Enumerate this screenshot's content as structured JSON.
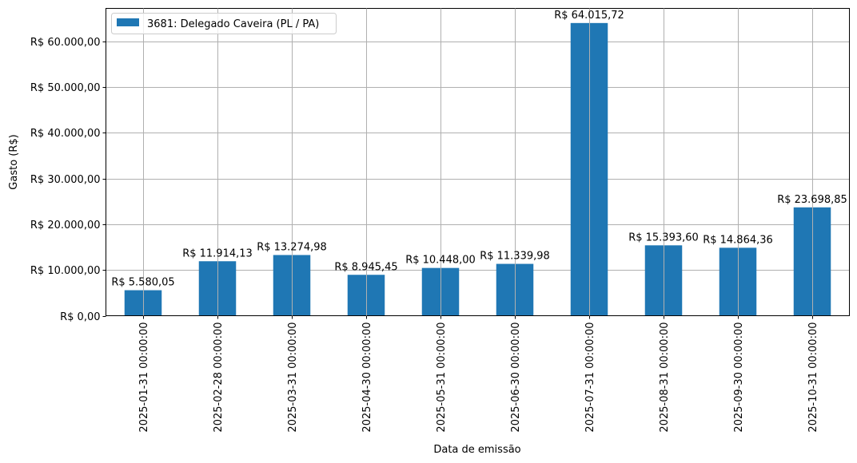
{
  "chart_data": {
    "type": "bar",
    "title": "",
    "xlabel": "Data de emissão",
    "ylabel": "Gasto (R$)",
    "ylim": [
      0,
      67216.51
    ],
    "grid": true,
    "legend_position": "upper left",
    "categories": [
      "2025-01-31 00:00:00",
      "2025-02-28 00:00:00",
      "2025-03-31 00:00:00",
      "2025-04-30 00:00:00",
      "2025-05-31 00:00:00",
      "2025-06-30 00:00:00",
      "2025-07-31 00:00:00",
      "2025-08-31 00:00:00",
      "2025-09-30 00:00:00",
      "2025-10-31 00:00:00"
    ],
    "series": [
      {
        "name": "3681: Delegado Caveira (PL / PA)",
        "color": "#1f77b4",
        "values": [
          5580.05,
          11914.13,
          13274.98,
          8945.45,
          10448.0,
          11339.98,
          64015.72,
          15393.6,
          14864.36,
          23698.85
        ],
        "labels": [
          "R$ 5.580,05",
          "R$ 11.914,13",
          "R$ 13.274,98",
          "R$ 8.945,45",
          "R$ 10.448,00",
          "R$ 11.339,98",
          "R$ 64.015,72",
          "R$ 15.393,60",
          "R$ 14.864,36",
          "R$ 23.698,85"
        ]
      }
    ],
    "yticks": [
      0,
      10000,
      20000,
      30000,
      40000,
      50000,
      60000
    ],
    "ytick_labels": [
      "R$ 0,00",
      "R$ 10.000,00",
      "R$ 20.000,00",
      "R$ 30.000,00",
      "R$ 40.000,00",
      "R$ 50.000,00",
      "R$ 60.000,00"
    ]
  },
  "colors": {
    "bar": "#1f77b4",
    "grid": "#b0b0b0",
    "axis": "#000000"
  }
}
